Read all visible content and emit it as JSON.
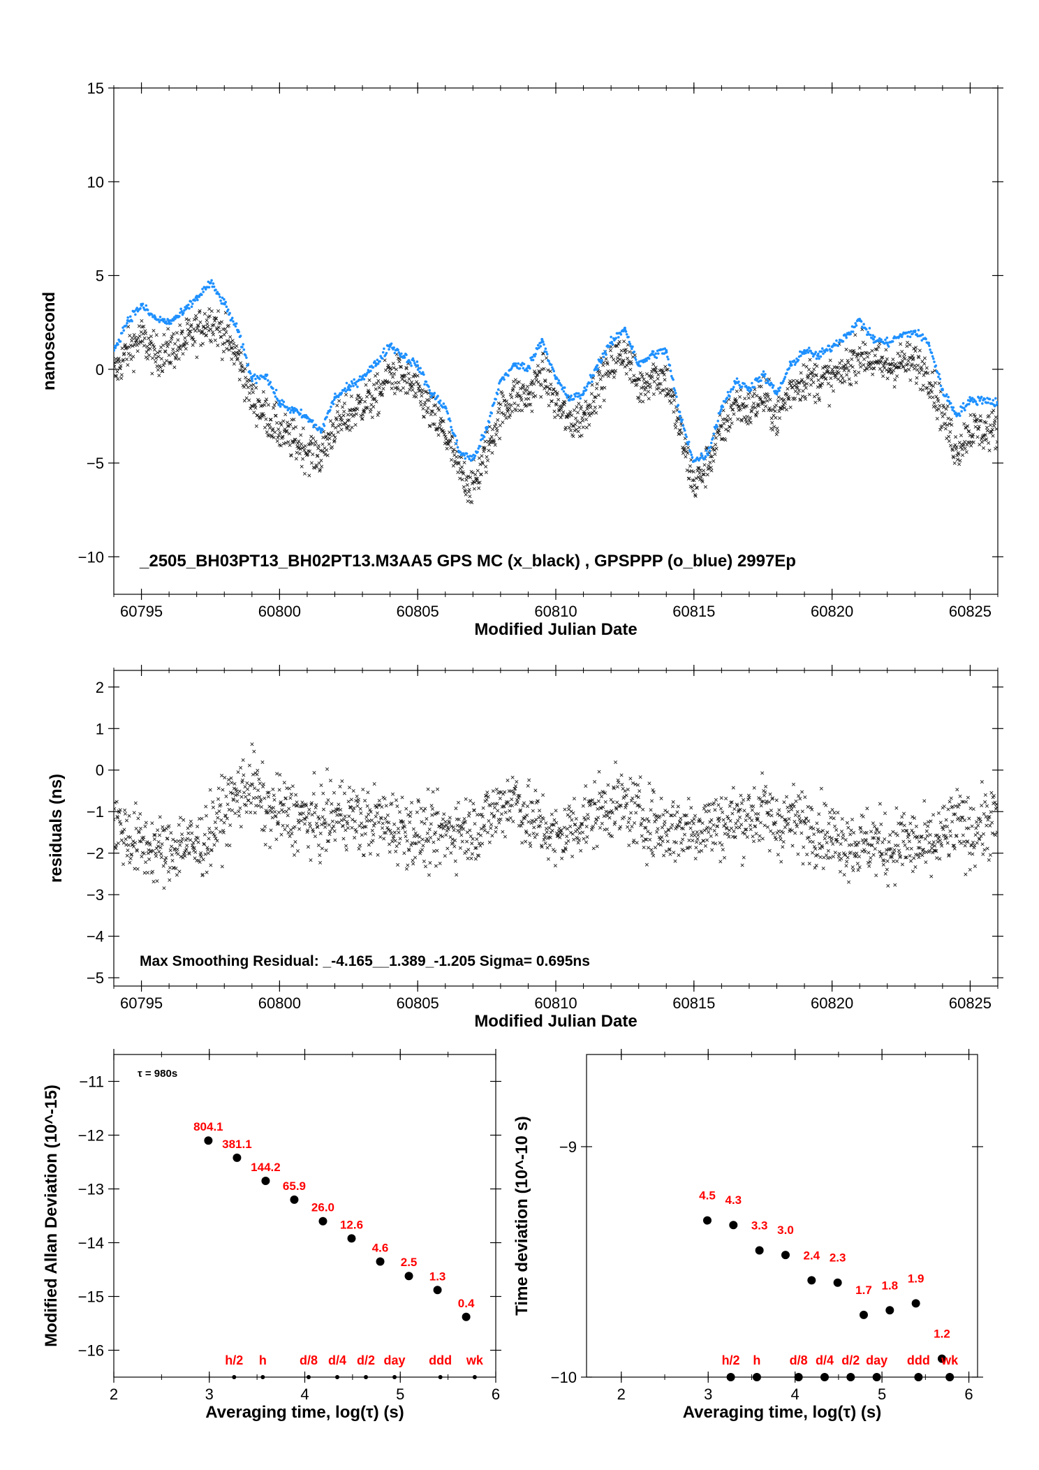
{
  "colors": {
    "axis": "#000000",
    "black_series": "#1a1a1a",
    "blue_series": "#1e90ff",
    "annotation": "#ff0000",
    "background": "#ffffff"
  },
  "chart_data": [
    {
      "id": "top",
      "type": "scatter",
      "title": "_2505_BH03PT13_BH02PT13.M3AA5    GPS MC (x_black) ,  GPSPPP (o_blue)  2997Ep",
      "xlabel": "Modified Julian Date",
      "ylabel": "nanosecond",
      "xlim": [
        60794,
        60826
      ],
      "ylim": [
        -12,
        15
      ],
      "xticks": [
        60795,
        60800,
        60805,
        60810,
        60815,
        60820,
        60825
      ],
      "yticks": [
        -10,
        -5,
        0,
        5,
        10,
        15
      ],
      "xtick_labels": [
        "60795",
        "60800",
        "60805",
        "60810",
        "60815",
        "60820",
        "60825"
      ],
      "ytick_labels": [
        "−10",
        "−5",
        "0",
        "5",
        "10",
        "15"
      ],
      "grid": false,
      "series": [
        {
          "name": "GPSPPP (o_blue)",
          "marker": "dot",
          "color": "#1e90ff",
          "x": [
            60794.0,
            60794.5,
            60795.0,
            60795.5,
            60796.0,
            60796.5,
            60797.0,
            60797.5,
            60798.0,
            60798.5,
            60799.0,
            60799.5,
            60800.0,
            60800.5,
            60801.0,
            60801.5,
            60802.0,
            60802.5,
            60803.0,
            60803.5,
            60804.0,
            60804.5,
            60805.0,
            60805.5,
            60806.0,
            60806.5,
            60807.0,
            60807.5,
            60808.0,
            60808.5,
            60809.0,
            60809.5,
            60810.0,
            60810.5,
            60811.0,
            60811.5,
            60812.0,
            60812.5,
            60813.0,
            60813.5,
            60814.0,
            60814.5,
            60815.0,
            60815.5,
            60816.0,
            60816.5,
            60817.0,
            60817.5,
            60818.0,
            60818.5,
            60819.0,
            60819.5,
            60820.0,
            60820.5,
            60821.0,
            60821.5,
            60822.0,
            60822.5,
            60823.0,
            60823.5,
            60824.0,
            60824.5,
            60825.0,
            60825.5,
            60826.0
          ],
          "y": [
            1.0,
            2.6,
            3.4,
            2.7,
            2.5,
            3.0,
            3.8,
            4.6,
            3.5,
            2.0,
            -0.5,
            -0.3,
            -1.8,
            -2.2,
            -2.6,
            -3.3,
            -1.5,
            -1.0,
            -0.4,
            0.3,
            1.3,
            0.7,
            0.2,
            -1.3,
            -2.0,
            -4.4,
            -4.8,
            -3.2,
            -0.6,
            0.2,
            0.1,
            1.6,
            -0.5,
            -1.6,
            -1.3,
            0.2,
            1.4,
            2.2,
            0.2,
            0.8,
            1.0,
            -2.5,
            -4.9,
            -4.5,
            -2.0,
            -0.7,
            -1.0,
            -0.3,
            -1.3,
            0.2,
            1.0,
            0.7,
            1.2,
            1.8,
            2.6,
            1.6,
            1.4,
            1.8,
            2.0,
            1.4,
            -1.1,
            -2.4,
            -1.7,
            -1.6,
            -1.8
          ]
        },
        {
          "name": "GPS MC (x_black)",
          "marker": "x",
          "color": "#1a1a1a",
          "x": [
            60794.0,
            60794.5,
            60795.0,
            60795.5,
            60796.0,
            60796.5,
            60797.0,
            60797.5,
            60798.0,
            60798.5,
            60799.0,
            60799.5,
            60800.0,
            60800.5,
            60801.0,
            60801.5,
            60802.0,
            60802.5,
            60803.0,
            60803.5,
            60804.0,
            60804.5,
            60805.0,
            60805.5,
            60806.0,
            60806.5,
            60807.0,
            60807.5,
            60808.0,
            60808.5,
            60809.0,
            60809.5,
            60810.0,
            60810.5,
            60811.0,
            60811.5,
            60812.0,
            60812.5,
            60813.0,
            60813.5,
            60814.0,
            60814.5,
            60815.0,
            60815.5,
            60816.0,
            60816.5,
            60817.0,
            60817.5,
            60818.0,
            60818.5,
            60819.0,
            60819.5,
            60820.0,
            60820.5,
            60821.0,
            60821.5,
            60822.0,
            60822.5,
            60823.0,
            60823.5,
            60824.0,
            60824.5,
            60825.0,
            60825.5,
            60826.0
          ],
          "y": [
            -0.3,
            1.0,
            1.7,
            0.7,
            1.0,
            1.4,
            2.0,
            2.7,
            1.8,
            0.6,
            -1.6,
            -2.4,
            -3.3,
            -3.8,
            -4.3,
            -4.6,
            -3.0,
            -2.5,
            -1.8,
            -1.5,
            -0.2,
            -0.5,
            -1.2,
            -2.4,
            -3.5,
            -5.4,
            -6.3,
            -4.4,
            -2.3,
            -1.4,
            -1.5,
            -0.1,
            -1.8,
            -2.8,
            -2.6,
            -0.9,
            0.3,
            1.0,
            -1.0,
            -0.3,
            -0.5,
            -3.3,
            -6.2,
            -5.0,
            -3.3,
            -1.8,
            -2.2,
            -1.4,
            -2.6,
            -1.1,
            -0.5,
            -0.6,
            -0.5,
            0.0,
            0.9,
            0.4,
            0.1,
            0.4,
            0.3,
            -0.2,
            -2.4,
            -4.3,
            -3.2,
            -3.3,
            -3.2
          ]
        }
      ]
    },
    {
      "id": "middle",
      "type": "scatter",
      "xlabel": "Modified Julian Date",
      "ylabel": "residuals (ns)",
      "annotation": "Max Smoothing Residual: _-4.165__1.389_-1.205  Sigma= 0.695ns",
      "xlim": [
        60794,
        60826
      ],
      "ylim": [
        -5.2,
        2.4
      ],
      "xticks": [
        60795,
        60800,
        60805,
        60810,
        60815,
        60820,
        60825
      ],
      "yticks": [
        -5,
        -4,
        -3,
        -2,
        -1,
        0,
        1,
        2
      ],
      "xtick_labels": [
        "60795",
        "60800",
        "60805",
        "60810",
        "60815",
        "60820",
        "60825"
      ],
      "ytick_labels": [
        "−5",
        "−4",
        "−3",
        "−2",
        "−1",
        "0",
        "1",
        "2"
      ],
      "grid": false,
      "series": [
        {
          "marker": "x",
          "color": "#1a1a1a",
          "x": [
            60794.0,
            60794.5,
            60795.0,
            60795.5,
            60796.0,
            60796.5,
            60797.0,
            60797.5,
            60798.0,
            60798.5,
            60799.0,
            60799.5,
            60800.0,
            60800.5,
            60801.0,
            60801.5,
            60802.0,
            60802.5,
            60803.0,
            60803.5,
            60804.0,
            60804.5,
            60805.0,
            60805.5,
            60806.0,
            60806.5,
            60807.0,
            60807.5,
            60808.0,
            60808.5,
            60809.0,
            60809.5,
            60810.0,
            60810.5,
            60811.0,
            60811.5,
            60812.0,
            60812.5,
            60813.0,
            60813.5,
            60814.0,
            60814.5,
            60815.0,
            60815.5,
            60816.0,
            60816.5,
            60817.0,
            60817.5,
            60818.0,
            60818.5,
            60819.0,
            60819.5,
            60820.0,
            60820.5,
            60821.0,
            60821.5,
            60822.0,
            60822.5,
            60823.0,
            60823.5,
            60824.0,
            60824.5,
            60825.0,
            60825.5,
            60826.0
          ],
          "y": [
            -1.2,
            -1.6,
            -1.8,
            -1.9,
            -2.0,
            -1.7,
            -1.9,
            -1.5,
            -1.0,
            -0.6,
            -0.3,
            -1.0,
            -1.0,
            -1.1,
            -1.2,
            -1.3,
            -1.1,
            -1.0,
            -1.3,
            -1.2,
            -1.3,
            -1.4,
            -1.5,
            -1.6,
            -1.5,
            -1.4,
            -1.4,
            -1.2,
            -0.9,
            -0.6,
            -1.2,
            -1.3,
            -1.7,
            -1.4,
            -1.2,
            -1.0,
            -0.8,
            -0.9,
            -1.1,
            -1.3,
            -1.4,
            -1.4,
            -1.4,
            -1.3,
            -1.3,
            -1.2,
            -1.1,
            -1.0,
            -1.3,
            -1.2,
            -1.3,
            -1.4,
            -1.6,
            -1.7,
            -1.8,
            -1.7,
            -1.9,
            -1.7,
            -1.8,
            -1.9,
            -1.6,
            -1.3,
            -1.5,
            -1.3,
            -1.2
          ]
        }
      ]
    },
    {
      "id": "mdev",
      "type": "scatter",
      "xlabel": "Averaging time, log(τ) (s)",
      "ylabel": "Modified Allan Deviation (10^-15)",
      "annotation": "τ = 980s",
      "xlim": [
        2,
        6
      ],
      "ylim": [
        -16.5,
        -10.5
      ],
      "xticks": [
        2,
        3,
        4,
        5,
        6
      ],
      "yticks": [
        -16,
        -15,
        -14,
        -13,
        -12,
        -11
      ],
      "xtick_labels": [
        "2",
        "3",
        "4",
        "5",
        "6"
      ],
      "ytick_labels": [
        "−16",
        "−15",
        "−14",
        "−13",
        "−12",
        "−11"
      ],
      "grid": false,
      "points": {
        "x": [
          2.99,
          3.29,
          3.59,
          3.89,
          4.19,
          4.49,
          4.79,
          5.09,
          5.39,
          5.69
        ],
        "y": [
          -12.1,
          -12.42,
          -12.85,
          -13.2,
          -13.6,
          -13.92,
          -14.35,
          -14.62,
          -14.88,
          -15.38
        ],
        "labels": [
          "804.1",
          "381.1",
          "144.2",
          "65.9",
          "26.0",
          "12.6",
          "4.6",
          "2.5",
          "1.3",
          "0.4"
        ]
      },
      "markers": {
        "x": [
          3.26,
          3.56,
          4.04,
          4.34,
          4.64,
          4.94,
          5.42,
          5.78
        ],
        "labels": [
          "h/2",
          "h",
          "d/8",
          "d/4",
          "d/2",
          "day",
          "ddd",
          "wk"
        ]
      }
    },
    {
      "id": "tdev",
      "type": "scatter",
      "xlabel": "Averaging time, log(τ) (s)",
      "ylabel": "Time deviation (10^-10 s)",
      "xlim": [
        1.6,
        6.1
      ],
      "ylim": [
        -10,
        -8.6
      ],
      "xticks": [
        2,
        3,
        4,
        5,
        6
      ],
      "yticks": [
        -10,
        -9
      ],
      "xtick_labels": [
        "2",
        "3",
        "4",
        "5",
        "6"
      ],
      "ytick_labels": [
        "−10",
        "−9"
      ],
      "grid": false,
      "points": {
        "x": [
          2.99,
          3.29,
          3.59,
          3.89,
          4.19,
          4.49,
          4.79,
          5.09,
          5.39,
          5.69
        ],
        "y": [
          -9.32,
          -9.34,
          -9.45,
          -9.47,
          -9.58,
          -9.59,
          -9.73,
          -9.71,
          -9.68,
          -9.92
        ],
        "labels": [
          "4.5",
          "4.3",
          "3.3",
          "3.0",
          "2.4",
          "2.3",
          "1.7",
          "1.8",
          "1.9",
          "1.2"
        ]
      },
      "markers": {
        "x": [
          3.26,
          3.56,
          4.04,
          4.34,
          4.64,
          4.94,
          5.42,
          5.78
        ],
        "labels": [
          "h/2",
          "h",
          "d/8",
          "d/4",
          "d/2",
          "day",
          "ddd",
          "wk"
        ]
      }
    }
  ]
}
